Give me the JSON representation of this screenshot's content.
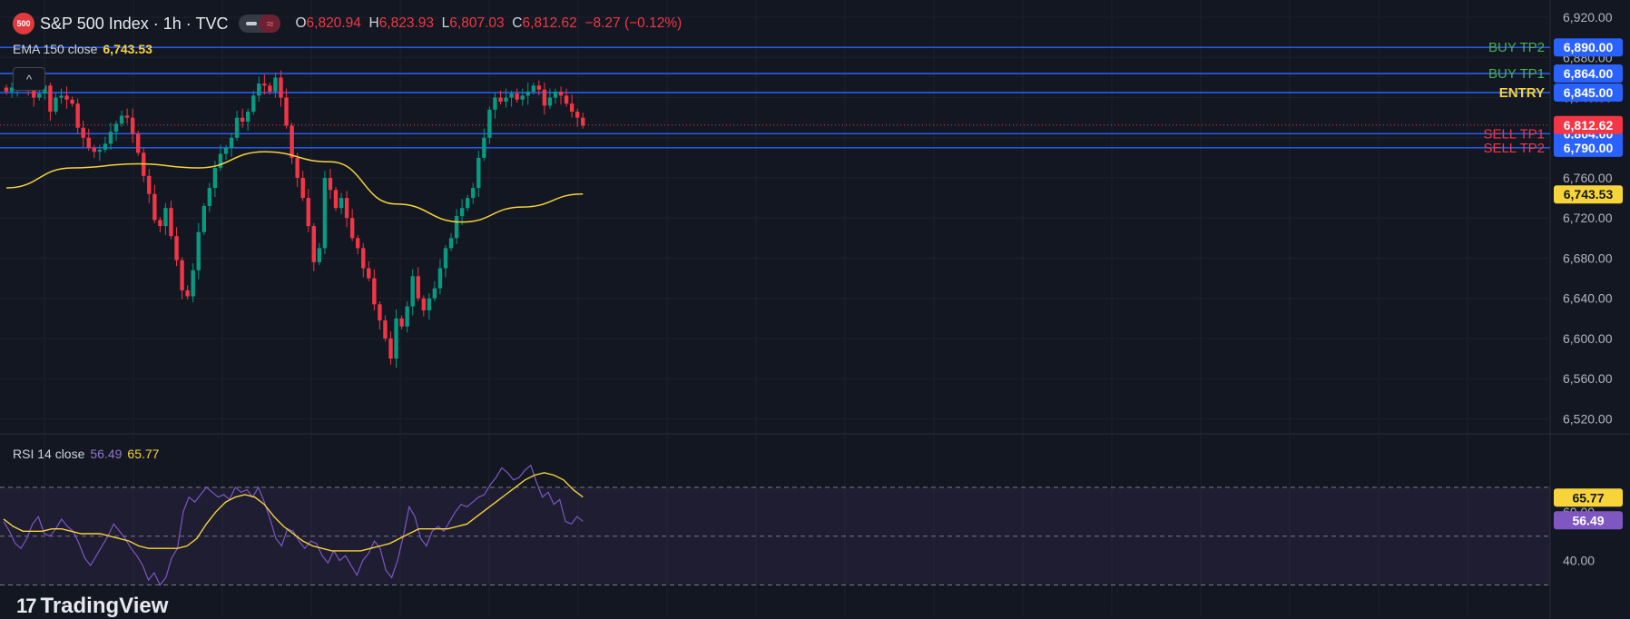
{
  "header": {
    "symbol_badge": "500",
    "symbol": "S&P 500 Index · 1h · TVC",
    "toggle_icon": "wave-icon",
    "ohlc": {
      "o_label": "O",
      "o": "6,820.94",
      "h_label": "H",
      "h": "6,823.93",
      "l_label": "L",
      "l": "6,807.03",
      "c_label": "C",
      "c": "6,812.62",
      "change": "−8.27 (−0.12%)"
    }
  },
  "ema_legend": {
    "label": "EMA 150 close",
    "value": "6,743.53"
  },
  "rsi_legend": {
    "label": "RSI 14 close",
    "value": "56.49",
    "ma_value": "65.77"
  },
  "branding": {
    "text": "TradingView",
    "mark": "17"
  },
  "colors": {
    "background": "#131722",
    "up": "#089981",
    "down": "#f23645",
    "ema": "#f7d43a",
    "rsi": "#7e57c2",
    "rsi_ma": "#f7d43a",
    "level_line": "#2962ff",
    "buy_label": "#4caf50",
    "sell_label": "#f23645",
    "entry_label": "#f7d43a"
  },
  "chart_data": [
    {
      "type": "candlestick",
      "price_axis": {
        "ticks": [
          "6,920.00",
          "6,880.00",
          "6,840.00",
          "6,800.00",
          "6,760.00",
          "6,720.00",
          "6,680.00",
          "6,640.00",
          "6,600.00",
          "6,560.00",
          "6,520.00"
        ],
        "ylim": [
          6505,
          6930
        ],
        "current_price": "6,812.62"
      },
      "levels": [
        {
          "name": "BUY TP2",
          "price": 6890,
          "label": "6,890.00",
          "kind": "buy"
        },
        {
          "name": "BUY TP1",
          "price": 6864,
          "label": "6,864.00",
          "kind": "buy"
        },
        {
          "name": "ENTRY",
          "price": 6845,
          "label": "6,845.00",
          "kind": "entry"
        },
        {
          "name": "SELL TP1",
          "price": 6804,
          "label": "6,804.00",
          "kind": "sell"
        },
        {
          "name": "SELL TP2",
          "price": 6790,
          "label": "6,790.00",
          "kind": "sell"
        }
      ],
      "ema": {
        "name": "EMA 150 close",
        "last_label": "6,743.53",
        "x": [
          0,
          10,
          20,
          30,
          40,
          50,
          60,
          70,
          80,
          89
        ],
        "y": [
          6750,
          6770,
          6774,
          6770,
          6786,
          6776,
          6734,
          6716,
          6731,
          6744
        ]
      },
      "close": [
        6846,
        6850,
        6858,
        6852,
        6848,
        6840,
        6844,
        6852,
        6826,
        6840,
        6842,
        6838,
        6834,
        6810,
        6800,
        6790,
        6786,
        6788,
        6794,
        6806,
        6814,
        6822,
        6820,
        6804,
        6785,
        6762,
        6744,
        6718,
        6712,
        6730,
        6702,
        6678,
        6648,
        6642,
        6668,
        6706,
        6732,
        6750,
        6770,
        6784,
        6790,
        6800,
        6820,
        6816,
        6826,
        6842,
        6854,
        6852,
        6846,
        6860,
        6840,
        6812,
        6780,
        6760,
        6740,
        6712,
        6676,
        6690,
        6760,
        6748,
        6730,
        6740,
        6720,
        6700,
        6690,
        6670,
        6660,
        6634,
        6618,
        6600,
        6580,
        6620,
        6612,
        6632,
        6662,
        6640,
        6628,
        6640,
        6650,
        6670,
        6690,
        6700,
        6722,
        6730,
        6740,
        6750,
        6780,
        6800,
        6828,
        6840,
        6836,
        6840,
        6844,
        6838,
        6842,
        6846,
        6852,
        6848,
        6832,
        6840,
        6846,
        6842,
        6834,
        6826,
        6820,
        6812
      ],
      "volume": []
    },
    {
      "type": "line",
      "name": "RSI 14 close",
      "ticks": [
        "60.00",
        "40.00"
      ],
      "ylim": [
        25,
        80
      ],
      "levels": [
        70,
        50,
        30
      ],
      "series": [
        {
          "name": "RSI",
          "last_label": "56.49",
          "values": [
            56,
            52,
            47,
            45,
            49,
            55,
            58,
            51,
            50,
            53,
            57,
            54,
            52,
            47,
            41,
            38,
            42,
            46,
            50,
            55,
            52,
            49,
            45,
            42,
            38,
            32,
            35,
            30,
            33,
            41,
            45,
            60,
            66,
            64,
            67,
            70,
            68,
            66,
            67,
            65,
            70,
            68,
            69,
            66,
            70,
            64,
            57,
            49,
            46,
            53,
            52,
            48,
            45,
            48,
            47,
            42,
            39,
            44,
            40,
            42,
            38,
            34,
            40,
            43,
            48,
            45,
            36,
            33,
            40,
            50,
            62,
            58,
            49,
            46,
            52,
            54,
            52,
            56,
            60,
            63,
            62,
            64,
            66,
            67,
            71,
            74,
            78,
            76,
            73,
            74,
            77,
            79,
            72,
            66,
            68,
            63,
            65,
            56,
            55,
            58,
            56
          ]
        },
        {
          "name": "RSI MA",
          "last_label": "65.77",
          "values": [
            57,
            54,
            52,
            52,
            52,
            53,
            53,
            52,
            51,
            51,
            51,
            50,
            49,
            48,
            46,
            45,
            45,
            45,
            45,
            46,
            49,
            55,
            60,
            64,
            66,
            67,
            66,
            63,
            58,
            54,
            51,
            48,
            46,
            45,
            44,
            44,
            44,
            44,
            45,
            46,
            47,
            49,
            51,
            53,
            53,
            53,
            53,
            54,
            55,
            58,
            61,
            64,
            67,
            70,
            73,
            75,
            76,
            75,
            73,
            69,
            66
          ]
        }
      ]
    }
  ]
}
